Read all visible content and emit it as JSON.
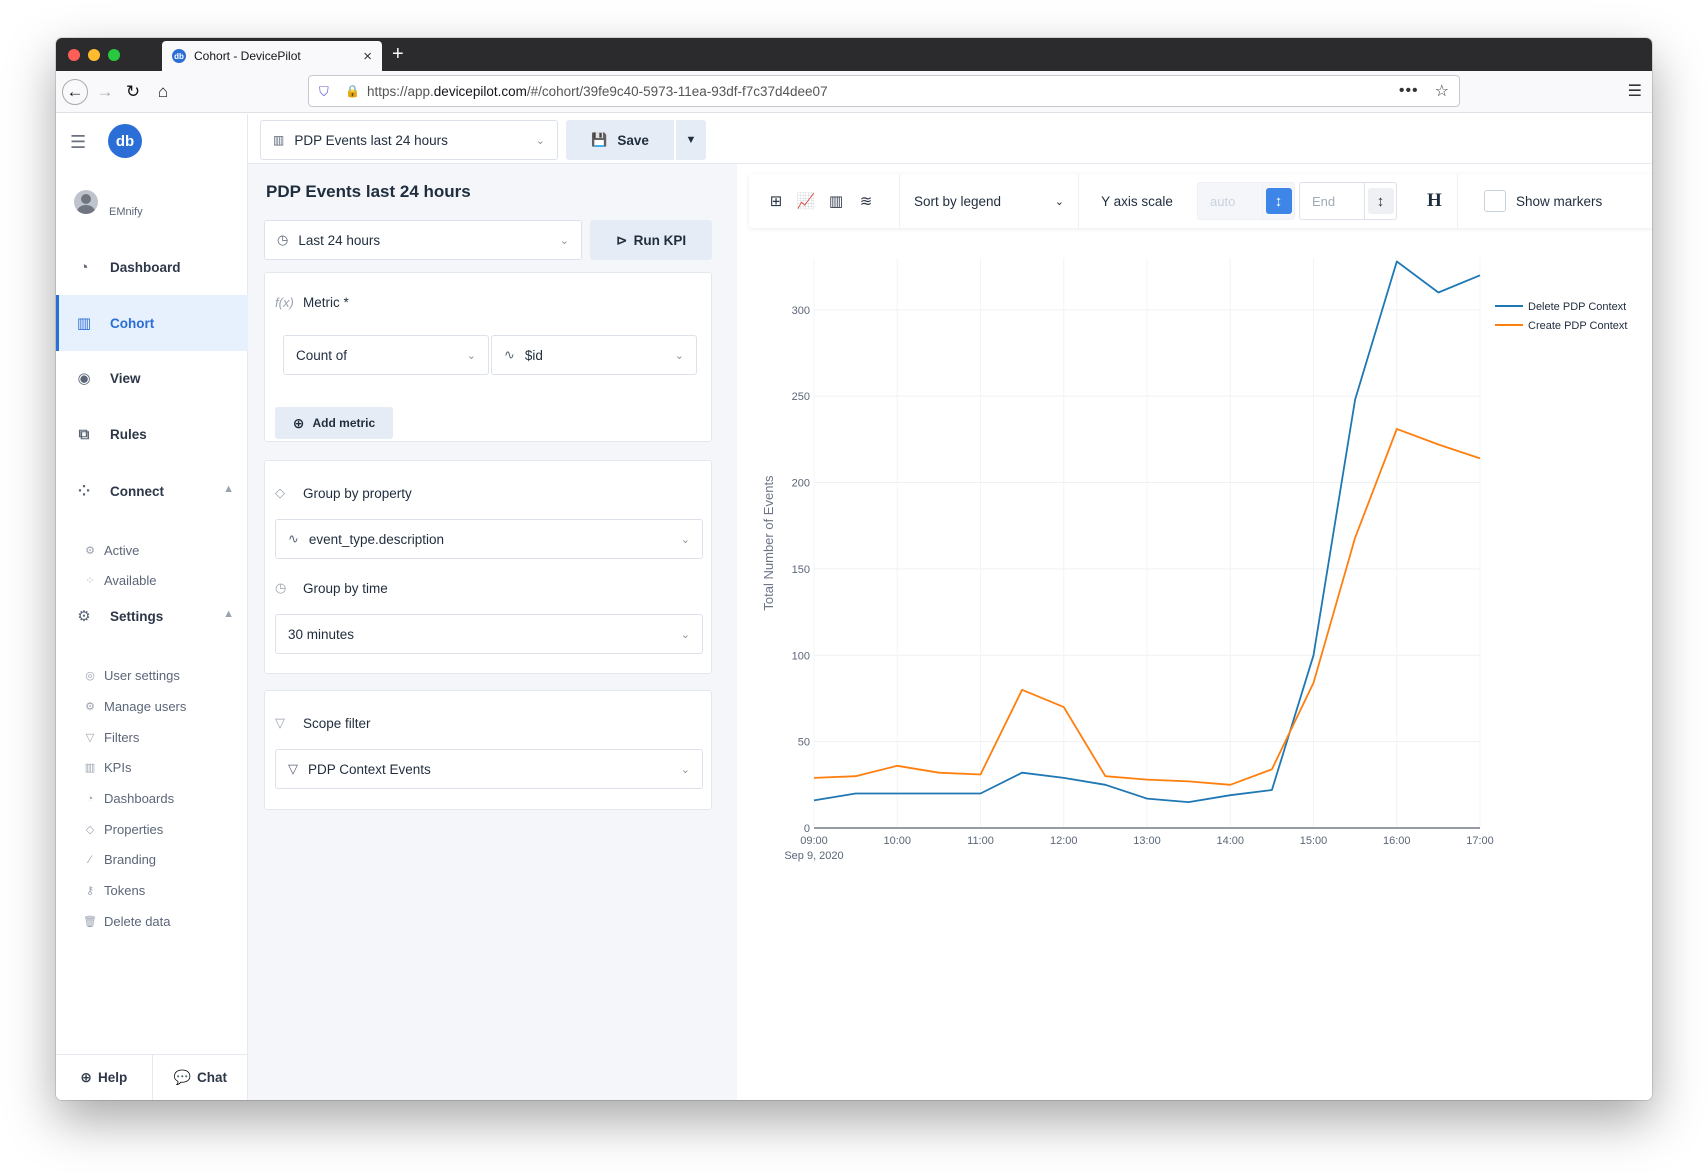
{
  "browser": {
    "tab_title": "Cohort - DevicePilot",
    "tab_favicon": "devicepilot-logo-icon",
    "url_prefix": "https://app.",
    "url_domain": "devicepilot.com",
    "url_path": "/#/cohort/39fe9c40-5973-11ea-93df-f7c37d4dee07",
    "traffic_lights": [
      "#ff5f57",
      "#febc2e",
      "#28c840"
    ]
  },
  "sidebar": {
    "logo": "db",
    "username": "EMnify",
    "nav": [
      {
        "label": "Dashboard",
        "icon": "gauge-icon"
      },
      {
        "label": "Cohort",
        "icon": "bar-chart-icon",
        "active": true
      },
      {
        "label": "View",
        "icon": "eye-icon"
      },
      {
        "label": "Rules",
        "icon": "flow-icon"
      },
      {
        "label": "Connect",
        "icon": "network-icon",
        "expanded": true
      },
      {
        "label": "Settings",
        "icon": "gears-icon",
        "expanded": true
      }
    ],
    "connect_items": [
      "Active",
      "Available"
    ],
    "settings_items": [
      "User settings",
      "Manage users",
      "Filters",
      "KPIs",
      "Dashboards",
      "Properties",
      "Branding",
      "Tokens",
      "Delete data"
    ],
    "footer": {
      "help": "Help",
      "chat": "Chat"
    }
  },
  "header": {
    "kpi_select": "PDP Events last 24 hours",
    "save_label": "Save"
  },
  "editor": {
    "title": "PDP Events last 24 hours",
    "time_range": "Last 24 hours",
    "run_label": "Run KPI",
    "metric": {
      "label": "Metric *",
      "aggregation": "Count of",
      "property": "$id",
      "add_label": "Add metric"
    },
    "group": {
      "property_label": "Group by property",
      "property_value": "event_type.description",
      "time_label": "Group by time",
      "time_value": "30 minutes"
    },
    "scope": {
      "label": "Scope filter",
      "value": "PDP Context Events"
    }
  },
  "toolbar": {
    "sort_label": "Sort by legend",
    "yscale_label": "Y axis scale",
    "start_placeholder": "auto",
    "end_placeholder": "End",
    "h_label": "H",
    "markers_label": "Show markers"
  },
  "chart_data": {
    "type": "line",
    "ylabel": "Total Number of Events",
    "xlabel": "",
    "x": [
      "09:00",
      "09:30",
      "10:00",
      "10:30",
      "11:00",
      "11:30",
      "12:00",
      "12:30",
      "13:00",
      "13:30",
      "14:00",
      "14:30",
      "15:00",
      "15:30",
      "16:00",
      "16:30",
      "17:00"
    ],
    "x_tick_labels": [
      "09:00",
      "10:00",
      "11:00",
      "12:00",
      "13:00",
      "14:00",
      "15:00",
      "16:00",
      "17:00"
    ],
    "x_date_label": "Sep 9, 2020",
    "ylim": [
      0,
      330
    ],
    "y_ticks": [
      0,
      50,
      100,
      150,
      200,
      250,
      300
    ],
    "grid": true,
    "legend_position": "top-right",
    "series": [
      {
        "name": "Delete PDP Context",
        "color": "#1f77b4",
        "values": [
          16,
          20,
          20,
          20,
          20,
          32,
          29,
          25,
          17,
          15,
          19,
          22,
          100,
          248,
          328,
          310,
          320
        ]
      },
      {
        "name": "Create PDP Context",
        "color": "#ff7f0e",
        "values": [
          29,
          30,
          36,
          32,
          31,
          80,
          70,
          30,
          28,
          27,
          25,
          34,
          84,
          168,
          231,
          222,
          214
        ]
      }
    ]
  }
}
